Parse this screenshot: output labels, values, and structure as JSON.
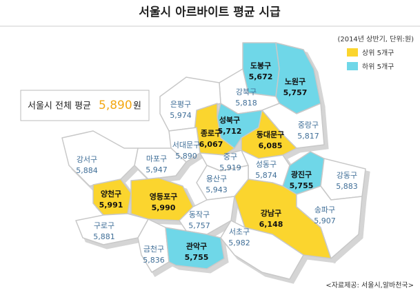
{
  "title": "서울시 아르바이트 평균 시급",
  "note": "(2014년 상반기, 단위:원)",
  "legend": [
    {
      "label": "상위 5개구",
      "color": "#fbd52e"
    },
    {
      "label": "하위 5개구",
      "color": "#6fd7e8"
    }
  ],
  "average": {
    "label": "서울시 전체 평균",
    "value": "5,890",
    "unit": "원",
    "color": "#f3a712"
  },
  "source": "<자료제공: 서울시,알바천국>",
  "districts": [
    {
      "name": "도봉구",
      "value": "5,672",
      "color": "#6fd7e8"
    },
    {
      "name": "노원구",
      "value": "5,757",
      "color": "#6fd7e8"
    },
    {
      "name": "강북구",
      "value": "5,818",
      "color": "#ffffff"
    },
    {
      "name": "은평구",
      "value": "5,974",
      "color": "#ffffff"
    },
    {
      "name": "성북구",
      "value": "5,712",
      "color": "#6fd7e8"
    },
    {
      "name": "중랑구",
      "value": "5,817",
      "color": "#ffffff"
    },
    {
      "name": "종로구",
      "value": "6,067",
      "color": "#fbd52e"
    },
    {
      "name": "동대문구",
      "value": "6,085",
      "color": "#fbd52e"
    },
    {
      "name": "서대문구",
      "value": "5,890",
      "color": "#ffffff"
    },
    {
      "name": "마포구",
      "value": "5,947",
      "color": "#ffffff"
    },
    {
      "name": "중구",
      "value": "5,919",
      "color": "#ffffff"
    },
    {
      "name": "강서구",
      "value": "5,884",
      "color": "#ffffff"
    },
    {
      "name": "성동구",
      "value": "5,874",
      "color": "#ffffff"
    },
    {
      "name": "광진구",
      "value": "5,755",
      "color": "#6fd7e8"
    },
    {
      "name": "강동구",
      "value": "5,883",
      "color": "#ffffff"
    },
    {
      "name": "용산구",
      "value": "5,943",
      "color": "#ffffff"
    },
    {
      "name": "양천구",
      "value": "5,991",
      "color": "#fbd52e"
    },
    {
      "name": "영등포구",
      "value": "5,990",
      "color": "#fbd52e"
    },
    {
      "name": "동작구",
      "value": "5,757",
      "color": "#ffffff"
    },
    {
      "name": "강남구",
      "value": "6,148",
      "color": "#fbd52e"
    },
    {
      "name": "송파구",
      "value": "5,907",
      "color": "#ffffff"
    },
    {
      "name": "구로구",
      "value": "5,881",
      "color": "#ffffff"
    },
    {
      "name": "서초구",
      "value": "5,982",
      "color": "#ffffff"
    },
    {
      "name": "금천구",
      "value": "5,836",
      "color": "#ffffff"
    },
    {
      "name": "관악구",
      "value": "5,755",
      "color": "#6fd7e8"
    }
  ]
}
